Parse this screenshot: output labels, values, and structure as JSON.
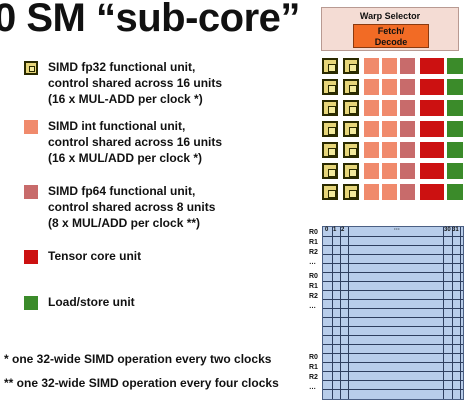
{
  "title": "0 SM “sub-core”",
  "legend": [
    {
      "id": "fp32",
      "lines": [
        "SIMD fp32 functional unit,",
        "control shared across 16 units",
        "(16 x MUL-ADD per clock *)"
      ],
      "color": "#e7d67a"
    },
    {
      "id": "int",
      "lines": [
        "SIMD int functional unit,",
        "control shared across 16 units",
        "(16 x MUL/ADD per clock *)"
      ],
      "color": "#f08a6c"
    },
    {
      "id": "fp64",
      "lines": [
        "SIMD fp64 functional unit,",
        "control shared across 8 units",
        "(8 x MUL/ADD per clock **)"
      ],
      "color": "#c86b6b"
    },
    {
      "id": "tensor",
      "lines": [
        "Tensor core unit"
      ],
      "color": "#cc1111"
    },
    {
      "id": "ldst",
      "lines": [
        "Load/store unit"
      ],
      "color": "#3b8b2a"
    }
  ],
  "footnotes": [
    "* one 32-wide SIMD operation every two clocks",
    "** one 32-wide SIMD operation every four clocks"
  ],
  "core": {
    "warp_selector": "Warp Selector",
    "fetch_decode": "Fetch/\nDecode",
    "unit_rows": 7,
    "register_file": {
      "col_headers": [
        "0",
        "1",
        "2",
        "···",
        "30",
        "31"
      ],
      "groups": [
        [
          "R0",
          "R1",
          "R2",
          "…"
        ],
        [
          "R0",
          "R1",
          "R2",
          "…"
        ],
        [
          "R0",
          "R1",
          "R2",
          "…"
        ]
      ]
    }
  }
}
